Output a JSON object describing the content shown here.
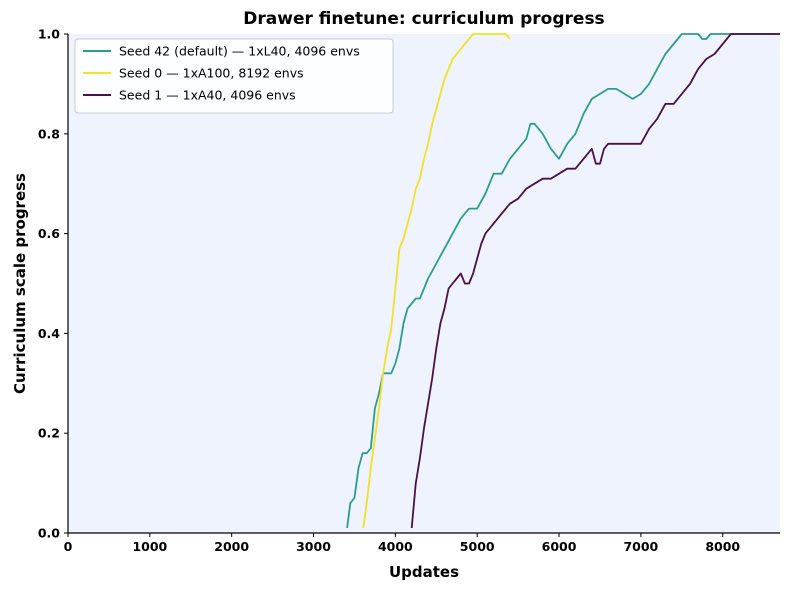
{
  "chart_data": {
    "type": "line",
    "title": "Drawer finetune: curriculum progress",
    "xlabel": "Updates",
    "ylabel": "Curriculum scale progress",
    "xlim": [
      0,
      8700
    ],
    "ylim": [
      0,
      1.0
    ],
    "xticks": [
      0,
      1000,
      2000,
      3000,
      4000,
      5000,
      6000,
      7000,
      8000
    ],
    "yticks": [
      0.0,
      0.2,
      0.4,
      0.6,
      0.8,
      1.0
    ],
    "ytick_labels": [
      "0.0",
      "0.2",
      "0.4",
      "0.6",
      "0.8",
      "1.0"
    ],
    "grid": false,
    "background": "#eef3fd",
    "legend_position": "top-left",
    "series": [
      {
        "name": "Seed 42 (default) — 1xL40, 4096 envs",
        "color": "#2a9d8f",
        "x": [
          3410,
          3450,
          3500,
          3550,
          3600,
          3650,
          3700,
          3750,
          3800,
          3850,
          3900,
          3950,
          4000,
          4050,
          4100,
          4150,
          4200,
          4250,
          4300,
          4350,
          4400,
          4500,
          4600,
          4700,
          4800,
          4900,
          5000,
          5100,
          5200,
          5300,
          5400,
          5500,
          5600,
          5650,
          5700,
          5800,
          5900,
          6000,
          6100,
          6200,
          6300,
          6400,
          6500,
          6600,
          6700,
          6800,
          6900,
          7000,
          7100,
          7200,
          7300,
          7400,
          7500,
          7600,
          7700,
          7750,
          7800,
          7850,
          7900,
          8000,
          8100,
          8200,
          8700
        ],
        "y": [
          0.01,
          0.06,
          0.07,
          0.13,
          0.16,
          0.16,
          0.17,
          0.25,
          0.28,
          0.32,
          0.32,
          0.32,
          0.34,
          0.37,
          0.42,
          0.45,
          0.46,
          0.47,
          0.47,
          0.49,
          0.51,
          0.54,
          0.57,
          0.6,
          0.63,
          0.65,
          0.65,
          0.68,
          0.72,
          0.72,
          0.75,
          0.77,
          0.79,
          0.82,
          0.82,
          0.8,
          0.77,
          0.75,
          0.78,
          0.8,
          0.84,
          0.87,
          0.88,
          0.89,
          0.89,
          0.88,
          0.87,
          0.88,
          0.9,
          0.93,
          0.96,
          0.98,
          1.0,
          1.0,
          1.0,
          0.99,
          0.99,
          1.0,
          1.0,
          1.0,
          1.0,
          1.0,
          1.0
        ]
      },
      {
        "name": "Seed 0 — 1xA100, 8192 envs",
        "color": "#f2e126",
        "x": [
          3610,
          3650,
          3700,
          3750,
          3800,
          3850,
          3900,
          3950,
          4000,
          4050,
          4100,
          4150,
          4200,
          4250,
          4300,
          4350,
          4400,
          4450,
          4500,
          4550,
          4600,
          4650,
          4700,
          4750,
          4800,
          4850,
          4900,
          4950,
          5000,
          5050,
          5100,
          5200,
          5300,
          5350,
          5400
        ],
        "y": [
          0.01,
          0.06,
          0.13,
          0.19,
          0.25,
          0.32,
          0.37,
          0.41,
          0.49,
          0.57,
          0.59,
          0.62,
          0.65,
          0.69,
          0.71,
          0.75,
          0.78,
          0.82,
          0.85,
          0.88,
          0.91,
          0.93,
          0.95,
          0.96,
          0.97,
          0.98,
          0.99,
          1.0,
          1.0,
          1.0,
          1.0,
          1.0,
          1.0,
          1.0,
          0.99
        ]
      },
      {
        "name": "Seed 1 — 1xA40, 4096 envs",
        "color": "#4b0f4d",
        "x": [
          4200,
          4250,
          4300,
          4350,
          4400,
          4450,
          4500,
          4550,
          4600,
          4650,
          4700,
          4750,
          4800,
          4850,
          4900,
          4950,
          5000,
          5050,
          5100,
          5150,
          5200,
          5300,
          5400,
          5500,
          5600,
          5700,
          5800,
          5900,
          6000,
          6100,
          6200,
          6300,
          6400,
          6450,
          6500,
          6550,
          6600,
          6700,
          6800,
          6900,
          7000,
          7100,
          7200,
          7300,
          7400,
          7450,
          7500,
          7600,
          7700,
          7800,
          7900,
          8000,
          8100,
          8200,
          8700
        ],
        "y": [
          0.01,
          0.1,
          0.15,
          0.21,
          0.26,
          0.31,
          0.37,
          0.42,
          0.45,
          0.49,
          0.5,
          0.51,
          0.52,
          0.5,
          0.5,
          0.52,
          0.55,
          0.58,
          0.6,
          0.61,
          0.62,
          0.64,
          0.66,
          0.67,
          0.69,
          0.7,
          0.71,
          0.71,
          0.72,
          0.73,
          0.73,
          0.75,
          0.77,
          0.74,
          0.74,
          0.77,
          0.78,
          0.78,
          0.78,
          0.78,
          0.78,
          0.81,
          0.83,
          0.86,
          0.86,
          0.87,
          0.88,
          0.9,
          0.93,
          0.95,
          0.96,
          0.98,
          1.0,
          1.0,
          1.0
        ]
      }
    ]
  }
}
